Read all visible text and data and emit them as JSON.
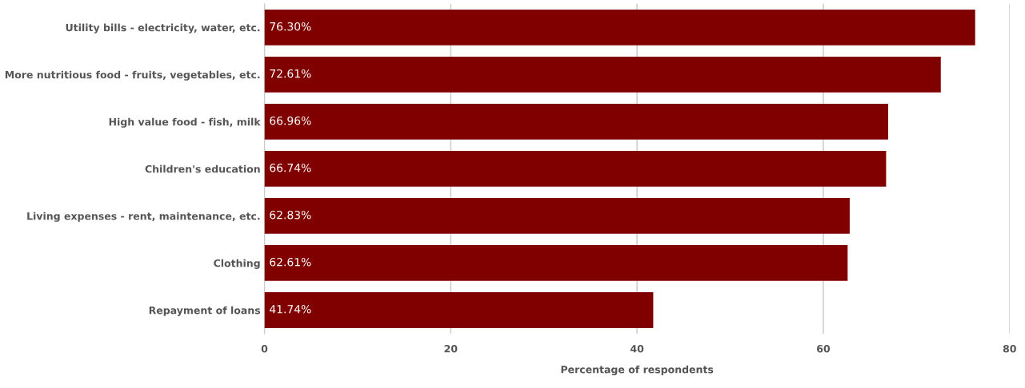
{
  "chart_data": {
    "type": "bar",
    "orientation": "horizontal",
    "xlabel": "Percentage of respondents",
    "categories": [
      "Utility bills - electricity, water, etc.",
      "More nutritious food - fruits, vegetables, etc.",
      "High value food - fish, milk",
      "Children's education",
      "Living expenses - rent, maintenance, etc.",
      "Clothing",
      "Repayment of loans"
    ],
    "values": [
      76.3,
      72.61,
      66.96,
      66.74,
      62.83,
      62.61,
      41.74
    ],
    "value_labels": [
      "76.30%",
      "72.61%",
      "66.96%",
      "66.74%",
      "62.83%",
      "62.61%",
      "41.74%"
    ],
    "color": "#800000",
    "xlim": [
      0,
      80
    ],
    "xticks": [
      0,
      20,
      40,
      60,
      80
    ],
    "grid": "x"
  }
}
